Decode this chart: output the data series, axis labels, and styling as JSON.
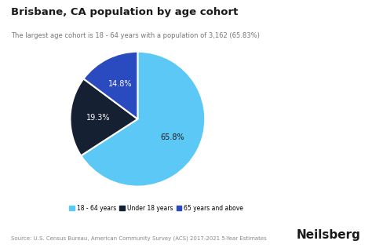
{
  "title": "Brisbane, CA population by age cohort",
  "subtitle": "The largest age cohort is 18 - 64 years with a population of 3,162 (65.83%)",
  "slices": [
    65.8,
    19.3,
    14.8
  ],
  "labels": [
    "18 - 64 years",
    "Under 18 years",
    "65 years and above"
  ],
  "colors": [
    "#5bc8f5",
    "#152033",
    "#2a4abf"
  ],
  "pct_labels": [
    "65.8%",
    "19.3%",
    "14.8%"
  ],
  "source": "Source: U.S. Census Bureau, American Community Survey (ACS) 2017-2021 5-Year Estimates",
  "brand": "Neilsberg",
  "background_color": "#ffffff",
  "startangle": 90
}
